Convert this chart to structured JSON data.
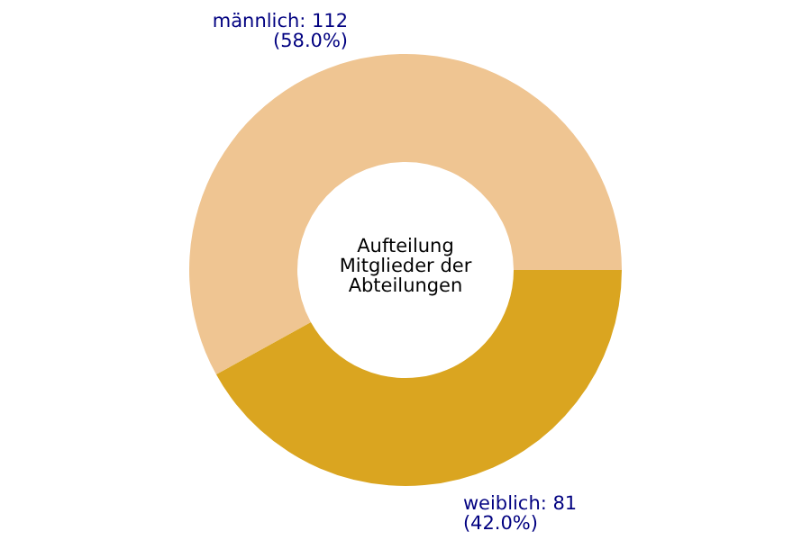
{
  "chart_data": {
    "type": "donut",
    "title": "Aufteilung Mitglieder der Abteilungen",
    "categories": [
      "männlich",
      "weiblich"
    ],
    "values": [
      112,
      81
    ],
    "colors": [
      "#efc592",
      "#daa520"
    ],
    "value_labels": [
      "112\n(58.0%)",
      "81\n(42.0%)"
    ],
    "legend": false
  }
}
